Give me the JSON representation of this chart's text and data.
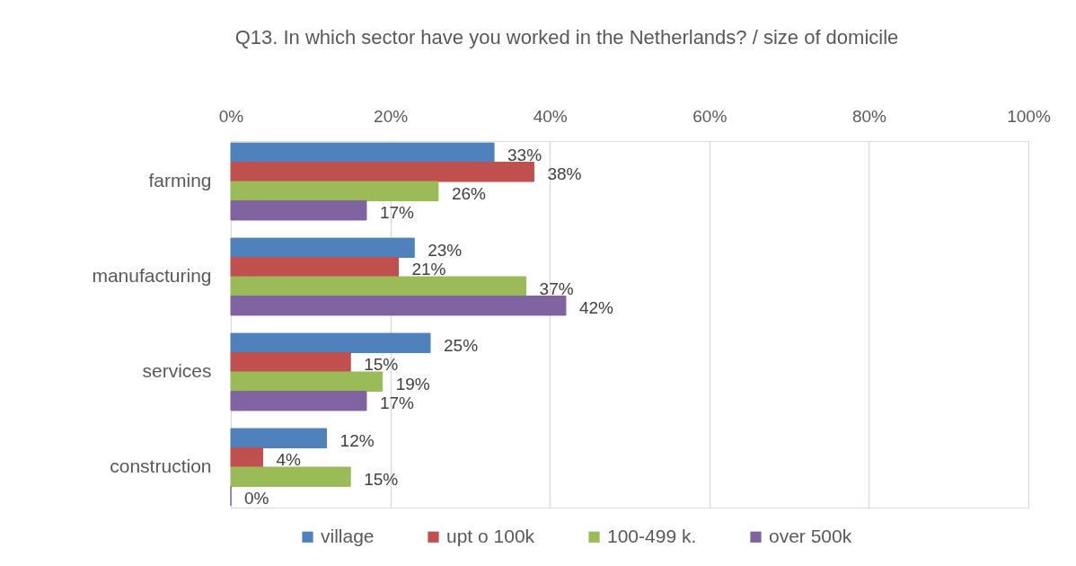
{
  "chart_data": {
    "type": "bar",
    "orientation": "horizontal",
    "title": "Q13. In which sector have you worked in the Netherlands? / size of domicile",
    "categories": [
      "farming",
      "manufacturing",
      "services",
      "construction"
    ],
    "series": [
      {
        "name": "village",
        "color": "#4f81bd",
        "values": [
          33,
          23,
          25,
          12
        ],
        "value_labels": [
          "33%",
          "23%",
          "25%",
          "12%"
        ]
      },
      {
        "name": "upt o 100k",
        "color": "#c0504d",
        "values": [
          38,
          21,
          15,
          4
        ],
        "value_labels": [
          "38%",
          "21%",
          "15%",
          "4%"
        ]
      },
      {
        "name": "100-499 k.",
        "color": "#9bbb59",
        "values": [
          26,
          37,
          19,
          15
        ],
        "value_labels": [
          "26%",
          "37%",
          "19%",
          "15%"
        ]
      },
      {
        "name": "over 500k",
        "color": "#8064a2",
        "values": [
          17,
          42,
          17,
          0
        ],
        "value_labels": [
          "17%",
          "42%",
          "17%",
          "0%"
        ]
      }
    ],
    "xlim": [
      0,
      100
    ],
    "xticks": [
      {
        "value": 0,
        "label": "0%"
      },
      {
        "value": 20,
        "label": "20%"
      },
      {
        "value": 40,
        "label": "40%"
      },
      {
        "value": 60,
        "label": "60%"
      },
      {
        "value": 80,
        "label": "80%"
      },
      {
        "value": 100,
        "label": "100%"
      }
    ],
    "grid": "x",
    "legend": "bottom"
  }
}
